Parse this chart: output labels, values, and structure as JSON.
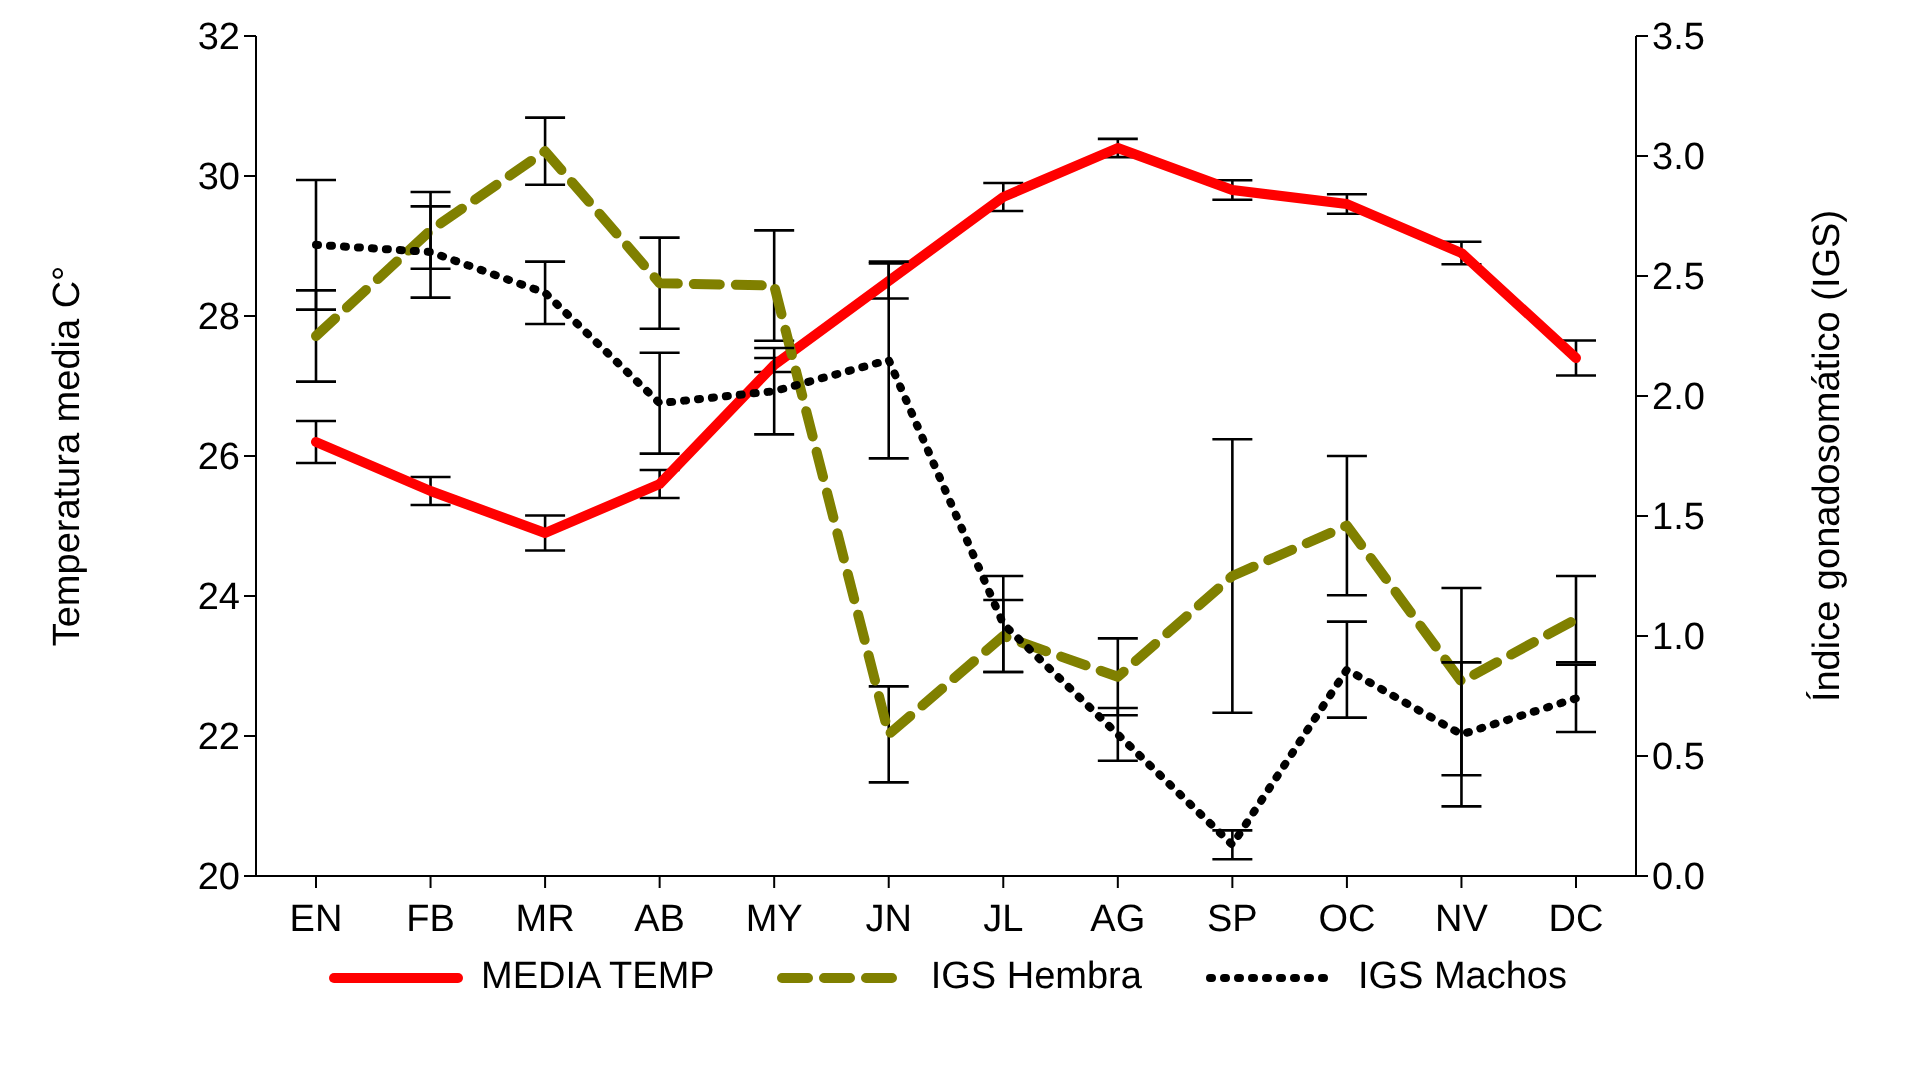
{
  "chart_data": {
    "type": "line",
    "categories": [
      "EN",
      "FB",
      "MR",
      "AB",
      "MY",
      "JN",
      "JL",
      "AG",
      "SP",
      "OC",
      "NV",
      "DC"
    ],
    "ylabel": "Temperatura media C°",
    "y2label": "Índice gonadosomático (IGS)",
    "ylim": [
      20,
      32
    ],
    "yticks": [
      20,
      22,
      24,
      26,
      28,
      30,
      32
    ],
    "y2lim": [
      0,
      3.5
    ],
    "y2ticks": [
      {
        "value": 0,
        "label": "0.0"
      },
      {
        "value": 0.5,
        "label": "0.5"
      },
      {
        "value": 1,
        "label": "1.0"
      },
      {
        "value": 1.5,
        "label": "1.5"
      },
      {
        "value": 2,
        "label": "2.0"
      },
      {
        "value": 2.5,
        "label": "2.5"
      },
      {
        "value": 3,
        "label": "3.0"
      },
      {
        "value": 3.5,
        "label": "3.5"
      }
    ],
    "grid": false,
    "legend": "bottom",
    "marker": "none",
    "series": [
      {
        "name": "MEDIA TEMP",
        "color": "#ff0000",
        "line_style": "solid",
        "values": [
          26.2,
          25.5,
          24.9,
          25.6,
          27.3,
          28.5,
          29.7,
          30.4,
          29.8,
          29.6,
          28.9,
          27.4
        ],
        "errors": [
          0.3,
          0.2,
          0.25,
          0.2,
          0.1,
          0.25,
          0.2,
          0.13,
          0.14,
          0.14,
          0.16,
          0.25
        ]
      },
      {
        "name": "IGS Hembra",
        "color": "#808000",
        "line_style": "dashed",
        "axis": "y2",
        "values": [
          2.25,
          2.69,
          3.02,
          2.47,
          2.46,
          0.59,
          1.0,
          0.83,
          1.25,
          1.46,
          0.81,
          1.07
        ],
        "errors": [
          0.19,
          0.16,
          0.14,
          0.19,
          0.23,
          0.2,
          0.15,
          0.16,
          0.57,
          0.29,
          0.39,
          0.18
        ]
      },
      {
        "name": "IGS Machos",
        "color": "#000000",
        "line_style": "dotted",
        "axis": "y2",
        "values": [
          2.63,
          2.6,
          2.43,
          1.97,
          2.02,
          2.15,
          1.05,
          0.59,
          0.13,
          0.86,
          0.59,
          0.74
        ],
        "errors": [
          0.27,
          0.19,
          0.13,
          0.21,
          0.18,
          0.41,
          0.2,
          0.11,
          0.06,
          0.2,
          0.3,
          0.14
        ]
      }
    ]
  }
}
